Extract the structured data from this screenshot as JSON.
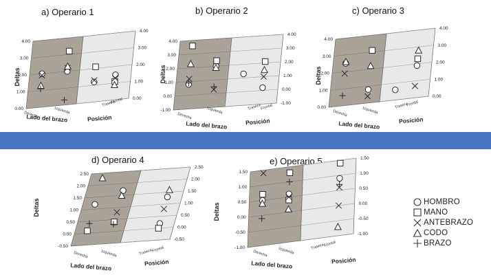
{
  "band_color": "#4472c4",
  "wall_left_color": "#aaa397",
  "wall_right_color": "#e9e9e9",
  "legend": [
    {
      "label": "HOMBRO",
      "symbol": "circle"
    },
    {
      "label": "MANO",
      "symbol": "square"
    },
    {
      "label": "ANTEBRAZO",
      "symbol": "x"
    },
    {
      "label": "CODO",
      "symbol": "triangle"
    },
    {
      "label": "BRAZO",
      "symbol": "plus"
    }
  ],
  "chart_data": [
    {
      "type": "scatter",
      "title": "a) Operario 1",
      "ylabel": "Deltas",
      "xlabel": "Lado del brazo",
      "zlabel": "Posición",
      "x_categories": [
        "Derecha",
        "Izquierda"
      ],
      "z_categories": [
        "Trasera",
        "Frontal"
      ],
      "ylim": [
        0,
        4
      ],
      "yticks": [
        "0.00",
        "1.00",
        "2.00",
        "3.00",
        "4.00"
      ],
      "series": [
        {
          "name": "HOMBRO",
          "points": [
            [
              0,
              0,
              2.0
            ],
            [
              1,
              0,
              2.0
            ],
            [
              0,
              1,
              1.2
            ],
            [
              1,
              1,
              1.5
            ]
          ]
        },
        {
          "name": "MANO",
          "points": [
            [
              1,
              0,
              3.2
            ],
            [
              0,
              1,
              2.1
            ],
            [
              1,
              1,
              1.1
            ]
          ]
        },
        {
          "name": "ANTEBRAZO",
          "points": [
            [
              0,
              0,
              1.9
            ],
            [
              1,
              0,
              2.2
            ],
            [
              0,
              1,
              1.3
            ],
            [
              1,
              1,
              1.3
            ]
          ]
        },
        {
          "name": "CODO",
          "points": [
            [
              0,
              0,
              1.3
            ],
            [
              1,
              0,
              2.3
            ],
            [
              1,
              1,
              0.9
            ]
          ]
        },
        {
          "name": "BRAZO",
          "points": [
            [
              0,
              0,
              1.1
            ],
            [
              1,
              0,
              0.3
            ]
          ]
        }
      ]
    },
    {
      "type": "scatter",
      "title": "b) Operario 2",
      "ylabel": "Deltas",
      "xlabel": "Lado del brazo",
      "zlabel": "Posición",
      "x_categories": [
        "Derecha",
        "Izquierda"
      ],
      "z_categories": [
        "Trasera",
        "Frontal"
      ],
      "ylim": [
        -1,
        4
      ],
      "yticks": [
        "-1.00",
        "0.00",
        "1.00",
        "2.00",
        "3.00",
        "4.00"
      ],
      "series": [
        {
          "name": "HOMBRO",
          "points": [
            [
              0,
              0,
              0.8
            ],
            [
              1,
              0,
              2.0
            ],
            [
              0,
              1,
              1.3
            ],
            [
              1,
              1,
              0.2
            ]
          ]
        },
        {
          "name": "MANO",
          "points": [
            [
              0,
              0,
              3.6
            ],
            [
              1,
              0,
              2.4
            ],
            [
              1,
              1,
              2.1
            ]
          ]
        },
        {
          "name": "ANTEBRAZO",
          "points": [
            [
              0,
              0,
              1.2
            ],
            [
              1,
              0,
              0.3
            ],
            [
              1,
              1,
              1.0
            ]
          ]
        },
        {
          "name": "CODO",
          "points": [
            [
              0,
              0,
              2.3
            ],
            [
              1,
              0,
              1.9
            ],
            [
              1,
              1,
              1.5
            ]
          ]
        },
        {
          "name": "BRAZO",
          "points": [
            [
              0,
              0,
              0.9
            ],
            [
              1,
              0,
              0.5
            ]
          ]
        }
      ]
    },
    {
      "type": "scatter",
      "title": "c) Operario 3",
      "ylabel": "Deltas",
      "xlabel": "Lado del brazo",
      "zlabel": "Posición",
      "x_categories": [
        "Derecha",
        "Izquierda"
      ],
      "z_categories": [
        "Trasera",
        "Frontal"
      ],
      "ylim": [
        0,
        4
      ],
      "yticks": [
        "0.00",
        "1.00",
        "2.00",
        "3.00",
        "4.00"
      ],
      "series": [
        {
          "name": "HOMBRO",
          "points": [
            [
              0,
              0,
              2.5
            ],
            [
              1,
              0,
              0.8
            ],
            [
              0,
              1,
              0.6
            ],
            [
              1,
              1,
              1.9
            ]
          ]
        },
        {
          "name": "MANO",
          "points": [
            [
              1,
              0,
              3.1
            ],
            [
              1,
              1,
              2.3
            ]
          ]
        },
        {
          "name": "ANTEBRAZO",
          "points": [
            [
              0,
              0,
              1.9
            ],
            [
              1,
              0,
              0.4
            ],
            [
              1,
              1,
              0.7
            ]
          ]
        },
        {
          "name": "CODO",
          "points": [
            [
              0,
              0,
              2.6
            ],
            [
              1,
              0,
              2.2
            ],
            [
              1,
              1,
              2.8
            ]
          ]
        },
        {
          "name": "BRAZO",
          "points": [
            [
              0,
              0,
              0.6
            ]
          ]
        }
      ]
    },
    {
      "type": "scatter",
      "title": "d) Operario 4",
      "ylabel": "Deltas",
      "xlabel": "Lado del brazo",
      "zlabel": "Posición",
      "x_categories": [
        "Derecha",
        "Izquierda"
      ],
      "z_categories": [
        "Trasera",
        "Frontal"
      ],
      "ylim": [
        -0.5,
        2.5
      ],
      "yticks": [
        "-0.50",
        "0.00",
        "0.50",
        "1.00",
        "1.50",
        "2.00",
        "2.50"
      ],
      "series": [
        {
          "name": "HOMBRO",
          "points": [
            [
              0,
              0,
              1.2
            ],
            [
              1,
              0,
              1.7
            ],
            [
              1,
              1,
              1.3
            ],
            [
              1,
              1,
              0.2
            ]
          ]
        },
        {
          "name": "MANO",
          "points": [
            [
              0,
              0,
              0.1
            ],
            [
              1,
              0,
              0.4
            ],
            [
              1,
              1,
              0.0
            ]
          ]
        },
        {
          "name": "ANTEBRAZO",
          "points": [
            [
              1,
              0,
              0.8
            ],
            [
              1,
              1,
              0.8
            ]
          ]
        },
        {
          "name": "CODO",
          "points": [
            [
              0,
              0,
              2.3
            ],
            [
              1,
              0,
              1.5
            ],
            [
              1,
              1,
              1.6
            ]
          ]
        },
        {
          "name": "BRAZO",
          "points": [
            [
              0,
              0,
              0.4
            ],
            [
              1,
              0,
              0.3
            ]
          ]
        }
      ]
    },
    {
      "type": "scatter",
      "title": "e) Operario 5",
      "ylabel": "Deltas",
      "xlabel": "Lado del brazo",
      "zlabel": "Posición",
      "x_categories": [
        "Derecha",
        "Izquierda"
      ],
      "z_categories": [
        "Trasera",
        "Frontal"
      ],
      "ylim": [
        -1,
        1.5
      ],
      "yticks": [
        "-1.00",
        "-0.50",
        "0.00",
        "0.50",
        "1.00",
        "1.50"
      ],
      "series": [
        {
          "name": "HOMBRO",
          "points": [
            [
              0,
              0,
              0.5
            ],
            [
              1,
              0,
              0.6
            ],
            [
              1,
              1,
              0.9
            ]
          ]
        },
        {
          "name": "MANO",
          "points": [
            [
              0,
              0,
              0.7
            ],
            [
              1,
              0,
              1.3
            ],
            [
              1,
              0,
              0.4
            ],
            [
              1,
              1,
              1.4
            ]
          ]
        },
        {
          "name": "ANTEBRAZO",
          "points": [
            [
              0,
              0,
              1.4
            ],
            [
              1,
              0,
              0.5
            ],
            [
              1,
              1,
              0.0
            ],
            [
              1,
              1,
              0.6
            ]
          ]
        },
        {
          "name": "CODO",
          "points": [
            [
              0,
              0,
              0.4
            ],
            [
              1,
              0,
              0.1
            ],
            [
              1,
              1,
              -0.7
            ]
          ]
        },
        {
          "name": "BRAZO",
          "points": [
            [
              0,
              0,
              -0.1
            ],
            [
              1,
              0,
              1.0
            ],
            [
              1,
              1,
              0.7
            ]
          ]
        }
      ]
    }
  ]
}
